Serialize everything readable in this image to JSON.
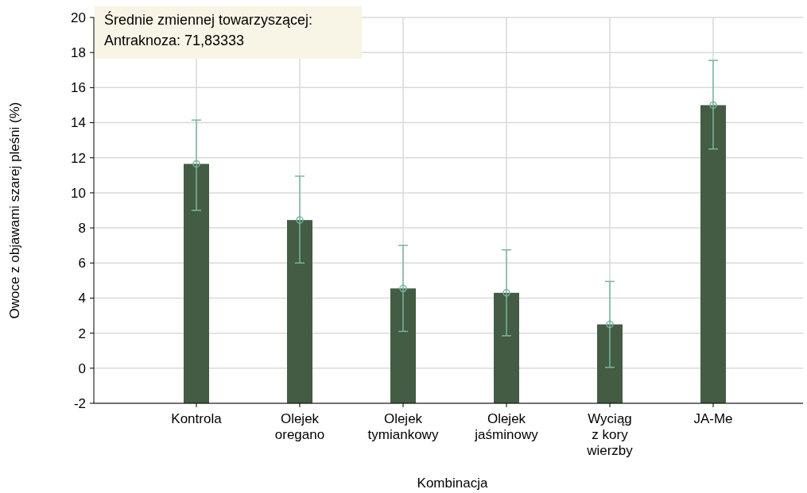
{
  "chart_data": {
    "type": "bar",
    "xlabel": "Kombinacja",
    "ylabel": "Owoce z objawami szarej pleśni (%)",
    "categories": [
      "Kontrola",
      "Olejek\noregano",
      "Olejek\ntymiankowy",
      "Olejek\njaśminowy",
      "Wyciąg\nz kory\nwierzby",
      "JA-Me"
    ],
    "series": [
      {
        "color": "#435c43",
        "base": [
          -2,
          -2,
          -2,
          -2,
          -2,
          -2
        ],
        "values": [
          13.65,
          10.45,
          6.55,
          6.3,
          4.5,
          17.0
        ]
      },
      {
        "type": "scatter",
        "color": "#7ab5a0",
        "x": [
          "Kontrola",
          "Olejek\noregano",
          "Olejek\ntymiankowy",
          "Olejek\njaśminowy",
          "Wyciąg\nz kory\nwierzby",
          "JA-Me"
        ],
        "values": [
          11.65,
          8.45,
          4.55,
          4.3,
          2.5,
          15.0
        ],
        "errors": [
          [
            9.0,
            14.15
          ],
          [
            6.0,
            10.95
          ],
          [
            2.1,
            7.0
          ],
          [
            1.85,
            6.75
          ],
          [
            0.05,
            4.95
          ],
          [
            12.5,
            17.55
          ]
        ]
      }
    ],
    "marker": "circle",
    "ylim": [
      -2,
      20
    ],
    "yticks": [
      -2,
      0,
      2,
      4,
      6,
      8,
      10,
      12,
      14,
      16,
      18,
      20
    ],
    "grid": true,
    "annotations": [
      "Średnie zmiennej towarzyszącej:\nAntraknoza: 71,83333"
    ]
  }
}
